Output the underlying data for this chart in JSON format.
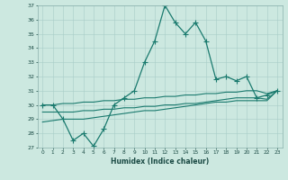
{
  "xlabel": "Humidex (Indice chaleur)",
  "ylabel": "",
  "background_color": "#cce8e0",
  "line_color": "#1a7a6e",
  "grid_color": "#a8ccc8",
  "xlim": [
    -0.5,
    23.5
  ],
  "ylim": [
    27,
    37
  ],
  "yticks": [
    27,
    28,
    29,
    30,
    31,
    32,
    33,
    34,
    35,
    36,
    37
  ],
  "xticks": [
    0,
    1,
    2,
    3,
    4,
    5,
    6,
    7,
    8,
    9,
    10,
    11,
    12,
    13,
    14,
    15,
    16,
    17,
    18,
    19,
    20,
    21,
    22,
    23
  ],
  "line1_x": [
    0,
    1,
    2,
    3,
    4,
    5,
    6,
    7,
    8,
    9,
    10,
    11,
    12,
    13,
    14,
    15,
    16,
    17,
    18,
    19,
    20,
    21,
    22,
    23
  ],
  "line1_y": [
    30.0,
    30.0,
    29.0,
    27.5,
    28.0,
    27.1,
    28.3,
    30.0,
    30.5,
    31.0,
    33.0,
    34.5,
    37.0,
    35.8,
    35.0,
    35.8,
    34.5,
    31.8,
    32.0,
    31.7,
    32.0,
    30.5,
    30.7,
    31.0
  ],
  "line2_x": [
    0,
    1,
    2,
    3,
    4,
    5,
    6,
    7,
    8,
    9,
    10,
    11,
    12,
    13,
    14,
    15,
    16,
    17,
    18,
    19,
    20,
    21,
    22,
    23
  ],
  "line2_y": [
    30.0,
    30.0,
    30.1,
    30.1,
    30.2,
    30.2,
    30.3,
    30.3,
    30.4,
    30.4,
    30.5,
    30.5,
    30.6,
    30.6,
    30.7,
    30.7,
    30.8,
    30.8,
    30.9,
    30.9,
    31.0,
    31.0,
    30.8,
    31.0
  ],
  "line3_x": [
    0,
    1,
    2,
    3,
    4,
    5,
    6,
    7,
    8,
    9,
    10,
    11,
    12,
    13,
    14,
    15,
    16,
    17,
    18,
    19,
    20,
    21,
    22,
    23
  ],
  "line3_y": [
    29.5,
    29.5,
    29.5,
    29.5,
    29.6,
    29.6,
    29.7,
    29.7,
    29.8,
    29.8,
    29.9,
    29.9,
    30.0,
    30.0,
    30.1,
    30.1,
    30.2,
    30.3,
    30.4,
    30.5,
    30.5,
    30.5,
    30.4,
    31.0
  ],
  "line4_x": [
    0,
    1,
    2,
    3,
    4,
    5,
    6,
    7,
    8,
    9,
    10,
    11,
    12,
    13,
    14,
    15,
    16,
    17,
    18,
    19,
    20,
    21,
    22,
    23
  ],
  "line4_y": [
    28.8,
    28.9,
    29.0,
    29.0,
    29.0,
    29.1,
    29.2,
    29.3,
    29.4,
    29.5,
    29.6,
    29.6,
    29.7,
    29.8,
    29.9,
    30.0,
    30.1,
    30.2,
    30.2,
    30.3,
    30.3,
    30.3,
    30.3,
    31.0
  ]
}
